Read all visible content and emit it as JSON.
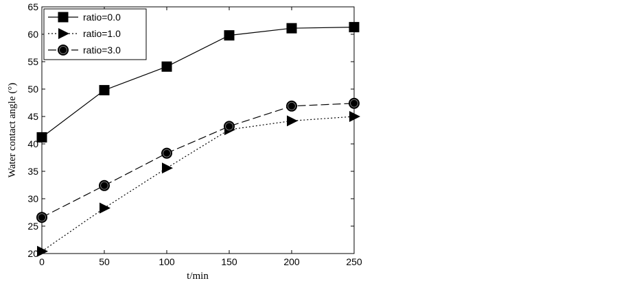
{
  "chart_data": {
    "type": "line",
    "title": "",
    "xlabel": "t/min",
    "ylabel": "Water contact angle (°)",
    "xlim": [
      0,
      250
    ],
    "ylim": [
      20,
      65
    ],
    "xticks": [
      0,
      50,
      100,
      150,
      200,
      250
    ],
    "yticks": [
      20,
      25,
      30,
      35,
      40,
      45,
      50,
      55,
      60,
      65
    ],
    "grid": false,
    "legend_position": "top-left",
    "x": [
      0,
      50,
      100,
      150,
      200,
      250
    ],
    "series": [
      {
        "name": "ratio=0.0",
        "values": [
          41.2,
          49.8,
          54.1,
          59.8,
          61.1,
          61.3
        ],
        "marker": "square",
        "line": "solid"
      },
      {
        "name": "ratio=1.0",
        "values": [
          20.4,
          28.3,
          35.6,
          42.6,
          44.2,
          45.0
        ],
        "marker": "triangle-right",
        "line": "dotted"
      },
      {
        "name": "ratio=3.0",
        "values": [
          26.6,
          32.4,
          38.3,
          43.2,
          46.9,
          47.4
        ],
        "marker": "circle",
        "line": "dashed"
      }
    ],
    "colors": {
      "line": "#000000",
      "background": "#ffffff"
    }
  }
}
